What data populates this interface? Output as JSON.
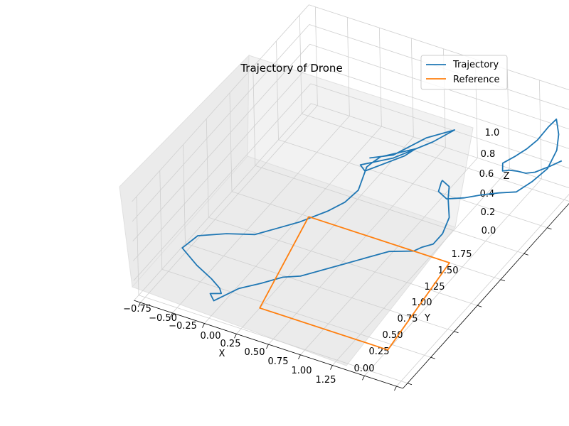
{
  "chart_data": {
    "type": "line3d",
    "title": "Trajectory of Drone",
    "xlabel": "X",
    "ylabel": "Y",
    "zlabel": "Z",
    "xlim": [
      -0.8,
      1.3
    ],
    "ylim": [
      -0.05,
      1.85
    ],
    "zlim": [
      0,
      1
    ],
    "x_ticks": [
      "−0.75",
      "−0.50",
      "−0.25",
      "0.00",
      "0.25",
      "0.50",
      "0.75",
      "1.00",
      "1.25"
    ],
    "y_ticks": [
      "0.00",
      "0.25",
      "0.50",
      "0.75",
      "1.00",
      "1.25",
      "1.50",
      "1.75"
    ],
    "z_ticks": [
      "0.0",
      "0.2",
      "0.4",
      "0.6",
      "0.8",
      "1.0"
    ],
    "legend_position": "top-right",
    "grid": true,
    "series": [
      {
        "name": "Trajectory",
        "color": "#1f77b4",
        "points": [
          [
            0.1,
            1.25,
            0.46
          ],
          [
            0.25,
            1.3,
            0.5
          ],
          [
            0.4,
            1.45,
            0.58
          ],
          [
            0.55,
            1.55,
            0.62
          ],
          [
            0.45,
            1.45,
            0.56
          ],
          [
            0.25,
            1.3,
            0.47
          ],
          [
            0.05,
            1.22,
            0.4
          ],
          [
            0.1,
            1.2,
            0.38
          ],
          [
            0.3,
            1.35,
            0.46
          ],
          [
            0.35,
            1.4,
            0.5
          ],
          [
            0.15,
            1.3,
            0.44
          ],
          [
            0.12,
            1.25,
            0.42
          ],
          [
            0.1,
            1.22,
            0.4
          ],
          [
            0.12,
            1.1,
            0.3
          ],
          [
            0.05,
            1.05,
            0.2
          ],
          [
            -0.05,
            1.0,
            0.12
          ],
          [
            -0.2,
            0.9,
            0.05
          ],
          [
            -0.4,
            0.7,
            0.05
          ],
          [
            -0.55,
            0.6,
            0.1
          ],
          [
            -0.7,
            0.5,
            0.12
          ],
          [
            -0.75,
            0.4,
            0.08
          ],
          [
            -0.6,
            0.35,
            0.02
          ],
          [
            -0.45,
            0.3,
            0.0
          ],
          [
            -0.35,
            0.25,
            0.0
          ],
          [
            -0.3,
            0.2,
            0.02
          ],
          [
            -0.35,
            0.15,
            0.05
          ],
          [
            -0.3,
            0.12,
            0.03
          ],
          [
            -0.2,
            0.25,
            0.06
          ],
          [
            -0.1,
            0.35,
            0.05
          ],
          [
            0.0,
            0.45,
            0.05
          ],
          [
            0.1,
            0.5,
            0.05
          ],
          [
            0.2,
            0.6,
            0.05
          ],
          [
            0.3,
            0.7,
            0.05
          ],
          [
            0.4,
            0.8,
            0.05
          ],
          [
            0.5,
            0.9,
            0.05
          ],
          [
            0.62,
            1.0,
            0.0
          ],
          [
            0.65,
            1.05,
            0.0
          ],
          [
            0.7,
            1.1,
            0.0
          ],
          [
            0.7,
            1.2,
            0.0
          ],
          [
            0.68,
            1.3,
            0.05
          ],
          [
            0.6,
            1.4,
            0.1
          ],
          [
            0.55,
            1.48,
            0.12
          ],
          [
            0.52,
            1.45,
            0.2
          ],
          [
            0.55,
            1.4,
            0.25
          ],
          [
            0.6,
            1.3,
            0.28
          ],
          [
            0.7,
            1.25,
            0.3
          ],
          [
            0.8,
            1.3,
            0.3
          ],
          [
            0.9,
            1.35,
            0.32
          ],
          [
            1.0,
            1.4,
            0.33
          ],
          [
            1.1,
            1.45,
            0.33
          ],
          [
            1.15,
            1.55,
            0.35
          ],
          [
            1.2,
            1.65,
            0.4
          ],
          [
            1.2,
            1.75,
            0.48
          ],
          [
            1.18,
            1.8,
            0.58
          ],
          [
            1.15,
            1.82,
            0.7
          ],
          [
            1.1,
            1.8,
            0.62
          ],
          [
            1.05,
            1.75,
            0.52
          ],
          [
            1.0,
            1.7,
            0.46
          ],
          [
            0.95,
            1.65,
            0.42
          ],
          [
            0.9,
            1.58,
            0.4
          ],
          [
            0.92,
            1.55,
            0.36
          ],
          [
            0.95,
            1.58,
            0.35
          ],
          [
            1.0,
            1.6,
            0.34
          ],
          [
            1.05,
            1.62,
            0.32
          ],
          [
            1.1,
            1.65,
            0.32
          ],
          [
            1.15,
            1.75,
            0.3
          ],
          [
            1.2,
            1.8,
            0.32
          ]
        ]
      },
      {
        "name": "Reference",
        "color": "#ff7f0e",
        "points": [
          [
            -0.2,
            1.0,
            0.0
          ],
          [
            0.0,
            0.2,
            0.0
          ],
          [
            1.0,
            0.2,
            0.0
          ],
          [
            0.9,
            1.0,
            0.0
          ],
          [
            -0.2,
            1.0,
            0.0
          ]
        ]
      }
    ]
  }
}
